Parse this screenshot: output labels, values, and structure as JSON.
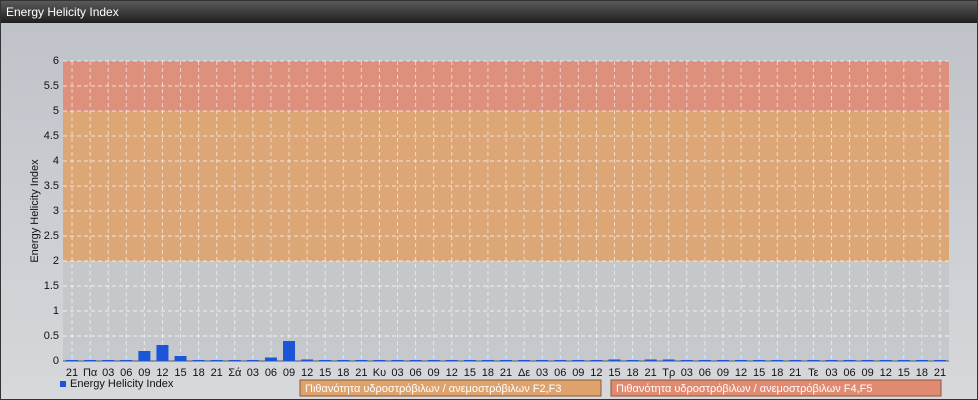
{
  "chart_data": {
    "type": "bar",
    "title": "Energy Helicity Index",
    "y_label": "Energy Helicity Index",
    "categories": [
      "21",
      "Πα",
      "03",
      "06",
      "09",
      "12",
      "15",
      "18",
      "21",
      "Σά",
      "03",
      "06",
      "09",
      "12",
      "15",
      "18",
      "21",
      "Κυ",
      "03",
      "06",
      "09",
      "12",
      "15",
      "18",
      "21",
      "Δε",
      "03",
      "06",
      "09",
      "12",
      "15",
      "18",
      "21",
      "Τρ",
      "03",
      "06",
      "09",
      "12",
      "15",
      "18",
      "21",
      "Τε",
      "03",
      "06",
      "09",
      "12",
      "15",
      "18",
      "21"
    ],
    "series": [
      {
        "name": "Energy Helicity Index",
        "color": "#1a56d6",
        "values": [
          0.02,
          0.02,
          0.02,
          0.02,
          0.2,
          0.32,
          0.1,
          0.02,
          0.02,
          0.02,
          0.02,
          0.07,
          0.4,
          0.03,
          0.02,
          0.02,
          0.02,
          0.02,
          0.02,
          0.02,
          0.02,
          0.02,
          0.02,
          0.02,
          0.02,
          0.02,
          0.02,
          0.02,
          0.02,
          0.02,
          0.03,
          0.02,
          0.03,
          0.03,
          0.02,
          0.02,
          0.02,
          0.02,
          0.02,
          0.02,
          0.02,
          0.02,
          0.02,
          0.02,
          0.02,
          0.02,
          0.02,
          0.02,
          0.02
        ]
      }
    ],
    "bands": [
      {
        "from": 0,
        "to": 2,
        "color": "#c3c6ca"
      },
      {
        "from": 2,
        "to": 5,
        "color": "#dea26c",
        "name": "Πιθανότητα υδροστρόβιλων / ανεμοστρόβιλων F2,F3"
      },
      {
        "from": 5,
        "to": 6,
        "color": "#e08a72",
        "name": "Πιθανότητα υδροστρόβιλων / ανεμοστρόβιλων F4,F5"
      }
    ],
    "ylim": [
      0,
      6
    ],
    "yticks": [
      0,
      0.5,
      1,
      1.5,
      2,
      2.5,
      3,
      3.5,
      4,
      4.5,
      5,
      5.5,
      6
    ],
    "grid": true
  }
}
